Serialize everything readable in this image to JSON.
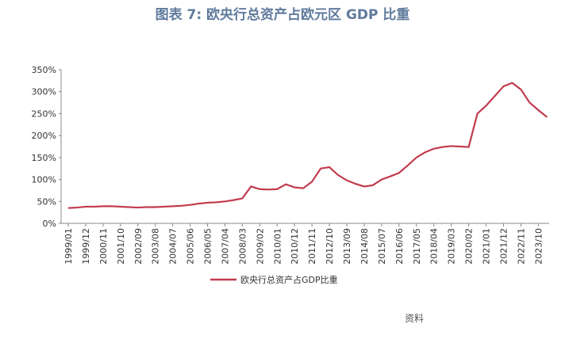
{
  "chart_data": {
    "type": "line",
    "title": "图表 7:  欧央行总资产占欧元区 GDP 比重",
    "source": "资料",
    "categories": [
      "1999/01",
      null,
      "1999/12",
      null,
      "2000/11",
      null,
      "2001/10",
      null,
      "2002/09",
      null,
      "2003/08",
      null,
      "2004/07",
      null,
      "2005/06",
      null,
      "2006/05",
      null,
      "2007/04",
      null,
      "2008/03",
      null,
      "2009/02",
      null,
      "2010/01",
      null,
      "2010/12",
      null,
      "2011/11",
      null,
      "2012/10",
      null,
      "2013/09",
      null,
      "2014/08",
      null,
      "2015/07",
      null,
      "2016/06",
      null,
      "2017/05",
      null,
      "2018/04",
      null,
      "2019/03",
      null,
      "2020/02",
      null,
      "2021/01",
      null,
      "2021/12",
      null,
      "2022/11",
      null,
      "2023/10",
      null
    ],
    "series": [
      {
        "name": "欧央行总资产占GDP比重",
        "color": "#c23b4e",
        "values": [
          35,
          36,
          38,
          38,
          39,
          39,
          38,
          37,
          36,
          37,
          37,
          38,
          39,
          40,
          42,
          45,
          47,
          48,
          50,
          53,
          57,
          84,
          78,
          77,
          78,
          89,
          82,
          80,
          95,
          125,
          128,
          110,
          98,
          90,
          84,
          87,
          100,
          107,
          115,
          132,
          150,
          162,
          170,
          174,
          176,
          175,
          174,
          250,
          268,
          290,
          312,
          320,
          305,
          275,
          258,
          242
        ]
      }
    ],
    "ylim": [
      0,
      350
    ],
    "yticks": [
      {
        "value": 0,
        "label": "0%"
      },
      {
        "value": 50,
        "label": "50%"
      },
      {
        "value": 100,
        "label": "100%"
      },
      {
        "value": 150,
        "label": "150%"
      },
      {
        "value": 200,
        "label": "200%"
      },
      {
        "value": 250,
        "label": "250%"
      },
      {
        "value": 300,
        "label": "300%"
      },
      {
        "value": 350,
        "label": "350%"
      }
    ],
    "legend": "bottom"
  }
}
